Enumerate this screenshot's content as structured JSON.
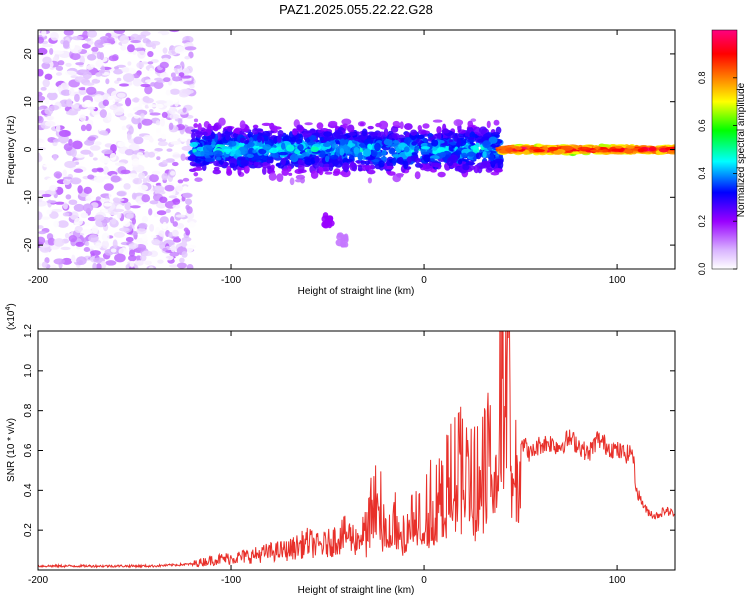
{
  "figure_title": "PAZ1.2025.055.22.22.G28",
  "chart_data": [
    {
      "type": "heatmap",
      "title": "PAZ1.2025.055.22.22.G28",
      "xlabel": "Height of straight line (km)",
      "ylabel": "Frequency (Hz)",
      "xlim": [
        -200,
        130
      ],
      "ylim": [
        -25,
        25
      ],
      "x_ticks": [
        -200,
        -100,
        0,
        100
      ],
      "y_ticks": [
        -20,
        -10,
        0,
        10,
        20
      ],
      "colorbar": {
        "label": "Normalized spectral amplitude",
        "range": [
          0,
          1
        ],
        "ticks": [
          "0.0",
          "0.2",
          "0.4",
          "0.6",
          "0.8"
        ],
        "colormap": [
          "#ffffff",
          "#d9b3ff",
          "#9900ff",
          "#0000ff",
          "#00ffff",
          "#00ff00",
          "#ffff00",
          "#ff8000",
          "#ff0000",
          "#ff0080"
        ]
      },
      "grid": false,
      "regions": [
        {
          "x_range": [
            -200,
            -120
          ],
          "freq_range": [
            -25,
            25
          ],
          "amplitude": [
            0.0,
            0.15
          ],
          "description": "scattered"
        },
        {
          "x_range": [
            -120,
            40
          ],
          "center_freq": 0,
          "freq_spread": 7,
          "amplitude": [
            0.1,
            0.5
          ]
        },
        {
          "x_range": [
            40,
            130
          ],
          "center_freq": 0,
          "freq_spread": 1,
          "amplitude": [
            0.6,
            1.0
          ]
        }
      ],
      "features": [
        {
          "x": -50,
          "freq": -15,
          "amplitude": 0.2
        },
        {
          "x": -42,
          "freq": -19,
          "amplitude": 0.12
        }
      ]
    },
    {
      "type": "line",
      "xlabel": "Height of straight line (km)",
      "ylabel": "SNR (10 * v/v)",
      "y_multiplier": "(x10",
      "y_multiplier_exp": "4",
      "y_multiplier_close": ")",
      "xlim": [
        -200,
        130
      ],
      "ylim": [
        0,
        1.2
      ],
      "x_ticks": [
        -200,
        -100,
        0,
        100
      ],
      "y_ticks": [
        0.2,
        0.4,
        0.6,
        0.8,
        1.0,
        1.2
      ],
      "color": "#e8302a",
      "grid": false,
      "series": [
        {
          "x": [
            -200,
            -180,
            -160,
            -140,
            -120,
            -110,
            -100,
            -90,
            -80,
            -70,
            -65,
            -60,
            -55,
            -50,
            -45,
            -40,
            -35,
            -30,
            -25,
            -24,
            -22,
            -20,
            -15,
            -10,
            -5,
            0,
            5,
            10,
            15,
            20,
            25,
            30,
            35,
            38,
            40,
            42,
            44,
            46,
            48,
            50,
            55,
            60,
            65,
            70,
            75,
            80,
            85,
            90,
            95,
            100,
            105,
            108,
            110,
            115,
            120,
            125,
            130
          ],
          "y": [
            0.02,
            0.02,
            0.02,
            0.02,
            0.03,
            0.05,
            0.06,
            0.07,
            0.09,
            0.1,
            0.12,
            0.14,
            0.12,
            0.13,
            0.16,
            0.18,
            0.15,
            0.2,
            0.45,
            0.65,
            0.3,
            0.2,
            0.28,
            0.22,
            0.26,
            0.3,
            0.4,
            0.42,
            0.5,
            0.55,
            0.45,
            0.55,
            0.7,
            0.9,
            1.18,
            0.85,
            1.12,
            0.7,
            0.62,
            0.66,
            0.58,
            0.63,
            0.64,
            0.62,
            0.66,
            0.63,
            0.58,
            0.66,
            0.62,
            0.6,
            0.58,
            0.6,
            0.4,
            0.3,
            0.27,
            0.3,
            0.28
          ]
        }
      ]
    }
  ]
}
